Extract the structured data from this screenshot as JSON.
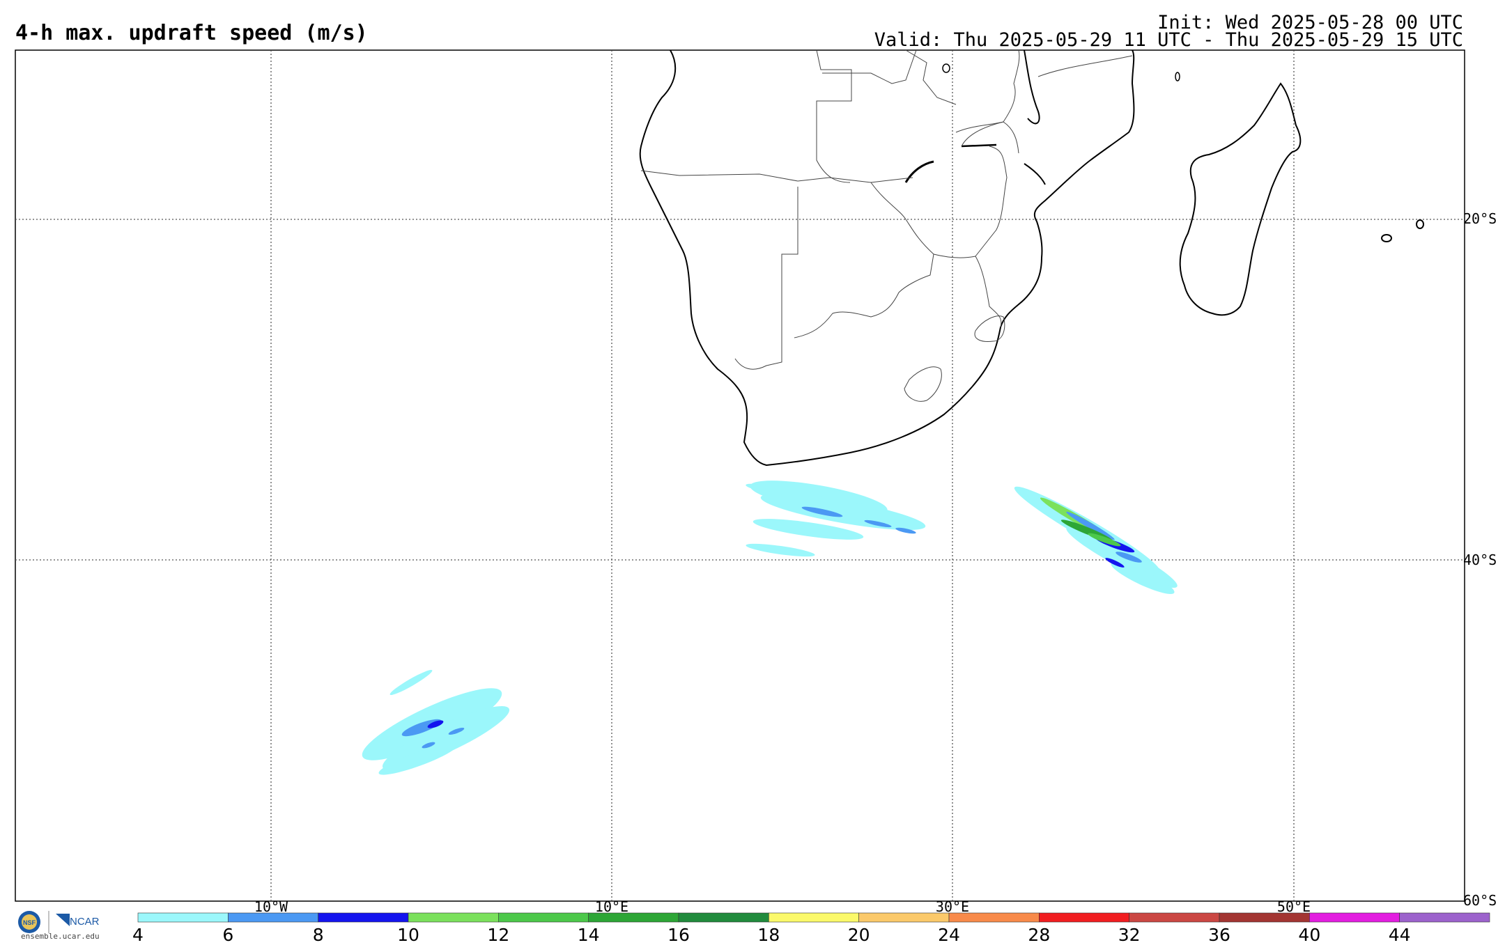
{
  "header": {
    "title": "4-h max. updraft speed (m/s)",
    "init": "Init: Wed 2025-05-28 00 UTC",
    "valid": "Valid: Thu 2025-05-29 11 UTC - Thu 2025-05-29 15 UTC"
  },
  "map": {
    "lon_labels": [
      "10°W",
      "10°E",
      "30°E",
      "50°E"
    ],
    "lat_labels": [
      "20°S",
      "40°S",
      "60°S"
    ]
  },
  "colorbar": {
    "ticks": [
      "4",
      "6",
      "8",
      "10",
      "12",
      "14",
      "16",
      "18",
      "20",
      "24",
      "28",
      "32",
      "36",
      "40",
      "44"
    ],
    "colors": [
      "#9bf7fb",
      "#4b99f3",
      "#1414ee",
      "#7be15c",
      "#4cc84a",
      "#2da636",
      "#218b3d",
      "#fbf96a",
      "#fbc96a",
      "#f88a4a",
      "#f11d20",
      "#cb4743",
      "#a33532",
      "#e31ee0",
      "#9c62cc"
    ]
  },
  "logo": {
    "text": "ensemble.ucar.edu",
    "org": "NCAR",
    "seal": "NSF"
  }
}
